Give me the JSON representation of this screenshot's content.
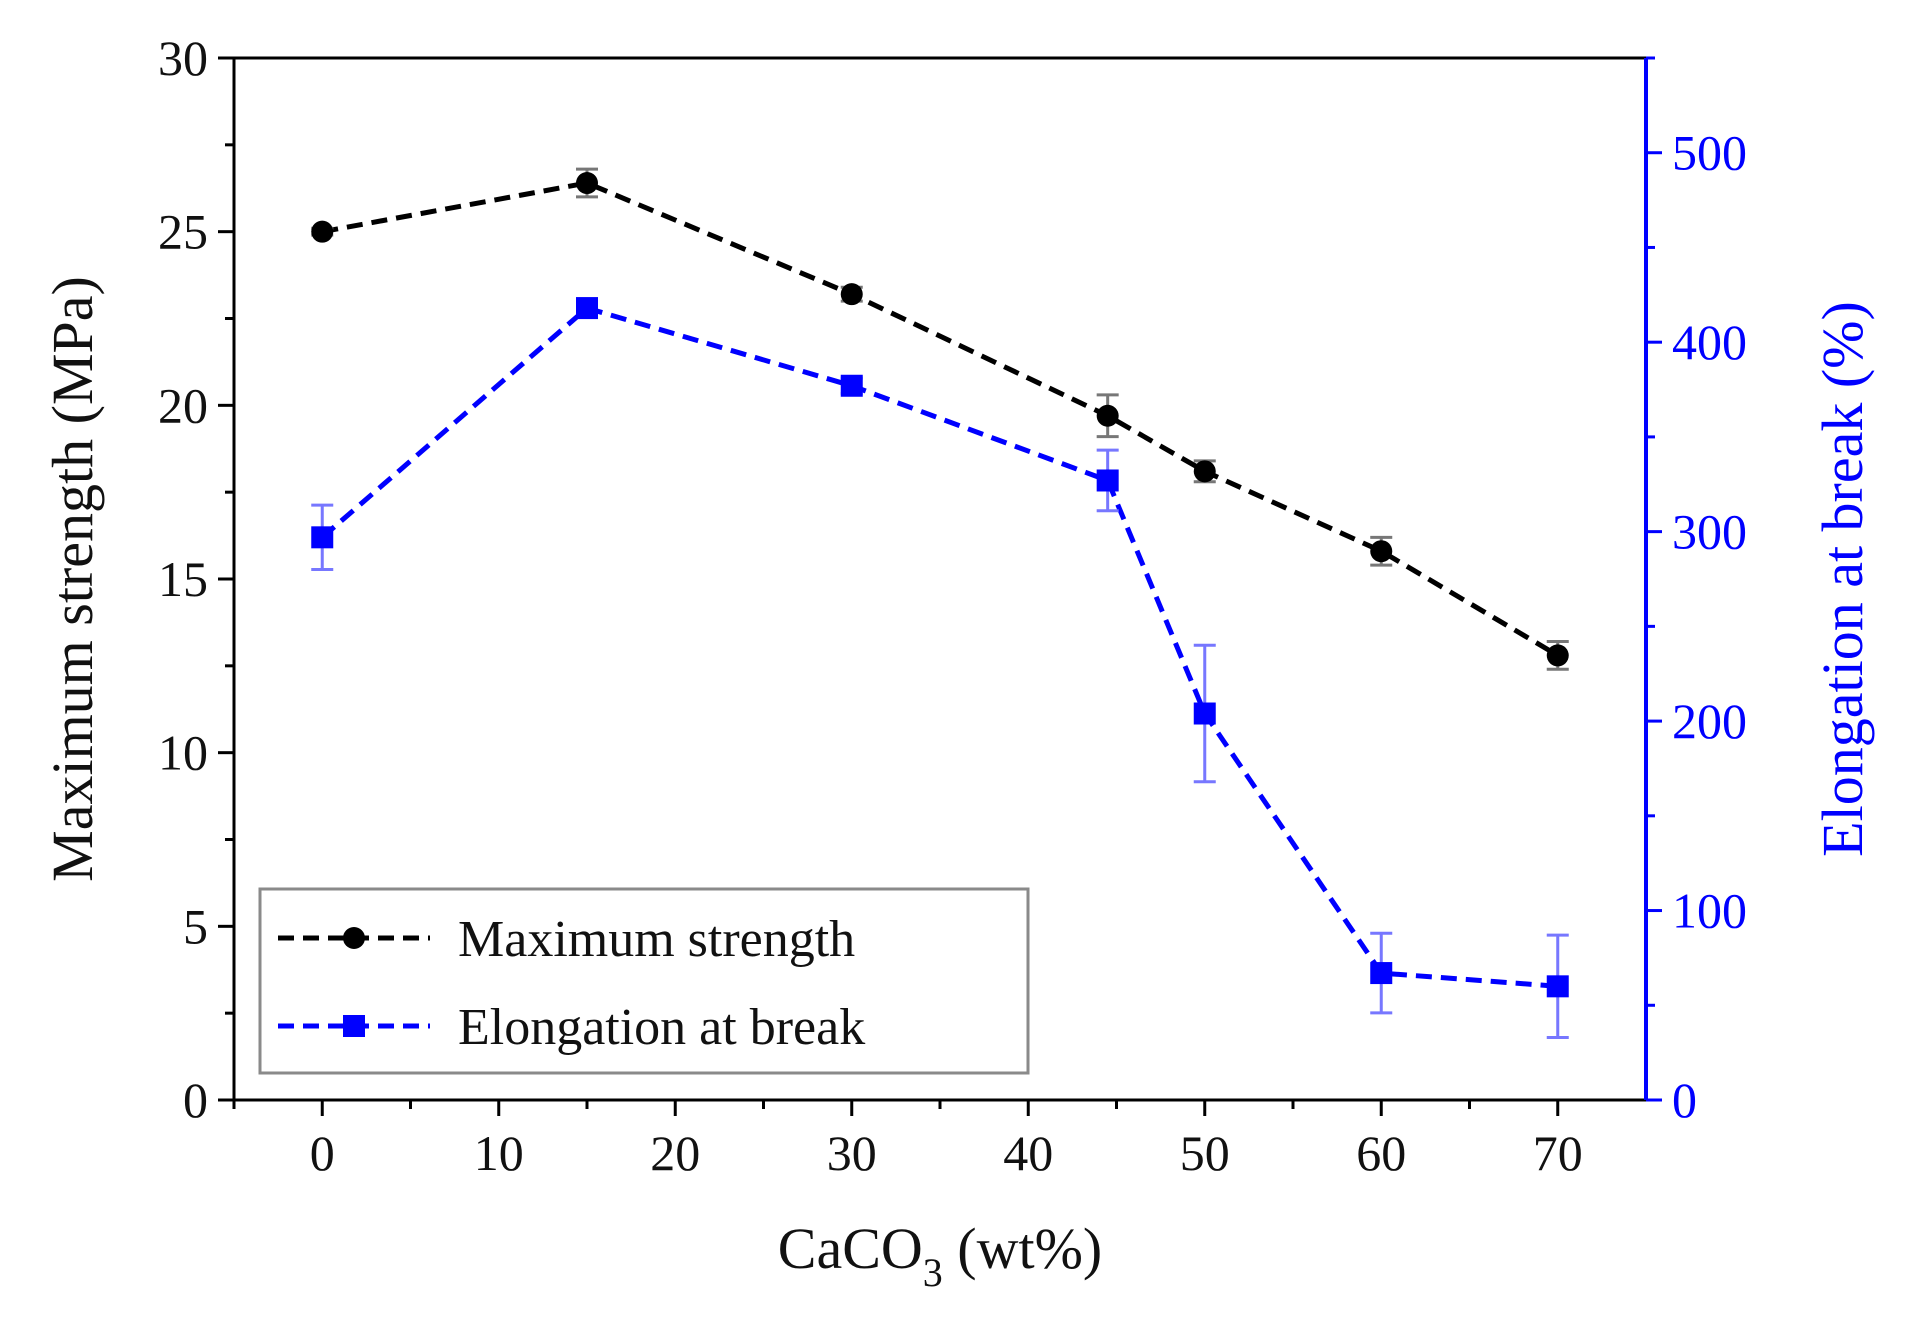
{
  "chart_data": {
    "type": "line",
    "title": "",
    "xlabel": {
      "main": "CaCO",
      "sub": "3",
      "suffix": " (wt%)"
    },
    "ylabel_left": "Maximum strength (MPa)",
    "ylabel_right": "Elongation at break (%)",
    "xlim": [
      -5,
      75
    ],
    "ylim_left": [
      0,
      30
    ],
    "ylim_right": [
      0,
      550
    ],
    "x_ticks": [
      0,
      10,
      20,
      30,
      40,
      50,
      60,
      70
    ],
    "x_tick_labels": [
      "0",
      "10",
      "20",
      "30",
      "40",
      "50",
      "60",
      "70"
    ],
    "y_left_ticks": [
      0,
      5,
      10,
      15,
      20,
      25,
      30
    ],
    "y_left_tick_labels": [
      "0",
      "5",
      "10",
      "15",
      "20",
      "25",
      "30"
    ],
    "y_right_ticks": [
      0,
      100,
      200,
      300,
      400,
      500
    ],
    "y_right_tick_labels": [
      "0",
      "100",
      "200",
      "300",
      "400",
      "500"
    ],
    "legend_position": "bottom-left",
    "colors": {
      "strength": "#000000",
      "elongation": "#0000ff",
      "strength_error": "#777777",
      "elongation_error": "#7777ff"
    },
    "series": [
      {
        "name": "Maximum strength",
        "axis": "left",
        "marker": "circle",
        "x": [
          0,
          15,
          30,
          44.5,
          50,
          60,
          70
        ],
        "y": [
          25.0,
          26.4,
          23.2,
          19.7,
          18.1,
          15.8,
          12.8
        ],
        "error": [
          0.1,
          0.4,
          0.2,
          0.6,
          0.3,
          0.4,
          0.4
        ]
      },
      {
        "name": "Elongation at break",
        "axis": "right",
        "marker": "square",
        "x": [
          0,
          15,
          30,
          44.5,
          50,
          60,
          70
        ],
        "y": [
          297,
          418,
          377,
          327,
          204,
          67,
          60
        ],
        "error": [
          17,
          4,
          4,
          16,
          36,
          21,
          27
        ]
      }
    ]
  }
}
